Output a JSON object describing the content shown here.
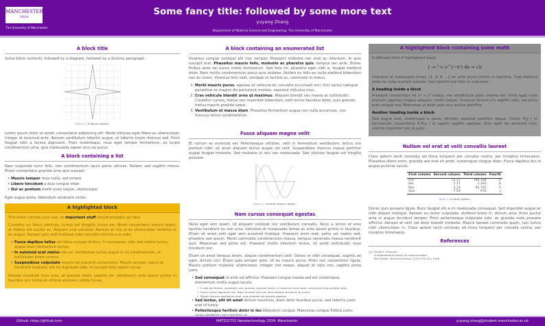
{
  "header": {
    "logo_text": "MANCHESTER",
    "logo_year": "1824",
    "logo_sub": "The University of Manchester",
    "title": "Some fancy title: followed by some more text",
    "author": "yuyang Zhang",
    "department": "Department of Material Science and Engineering, The University of Manchester"
  },
  "col1": {
    "b1_title": "A block title",
    "b1_intro": "Some block contents, followed by a diagram, followed by a dummy paragraph.",
    "fig1_label": "Figure 1.",
    "fig1_caption": "A figure caption.",
    "b1_para": "Lorem ipsum dolor sit amet, consectetur adipiscing elit. Morbi ultricies eget libero ac ullamcorper. Integer et euismod ante. Aenean vestibulum lobortis augue, ut lobortis turpis rhoncus sed. Proin feugiat nibh a lacinia dignissim. Proin scelerisque, risus eget tempor fermentum, ex turpis condimentum urna, quis malesuada sapien arcu eu purus.",
    "b2_title": "A block containing a list",
    "b2_intro": "Nam vulputate nunc felis, non condimentum lacus porta ultrices. Nullam sed sagittis metus. Etiam consectetur gravida urna quis suscipit.",
    "b2_items": [
      {
        "b": "Mauris tempor",
        "t": " risus nulla, sed ornare"
      },
      {
        "b": "Libero tincidunt",
        "t": " a duis congue vitae"
      },
      {
        "b": "Dui ac pretium",
        "t": " morbi justo neque, ullamcorper"
      }
    ],
    "b2_outro": "Eget augue porta, bibendum venenatis tortor.",
    "hb_title": "A highlighted block",
    "hb_p1a": "This block catches your eye, so ",
    "hb_p1b": "important stuff",
    "hb_p1c": " should probably go here.",
    "hb_p2": "Curabitur eu libero vehicula, cursus est fringilla, luctus est. Morbi consectetur mauris quam, at finibus elit auctor ac. Aliquam erat volutpat. Aenean at nisl ut ex ullamcorper eleifend et eu augue. Aenean quis velit tristique odio convallis ultrices a ac odio.",
    "hb_items": [
      {
        "b": "Fusce dapibus tellus",
        "t": " vel tellus semper finibus. In consequat, nibh sed mattis luctus, augue diam fermentum lectus."
      },
      {
        "b": "In euismod erat metus",
        "t": " non ex. Vestibulum luctus augue in mi condimentum, at sollicitudin lorem viverra."
      },
      {
        "b": "Suspendisse vulputate",
        "t": " mauris vel placerat consectetur. Mauris semper, purus ac hendrerit molestie, elit mi dignissim odio, in suscipit felis sapien vel ex."
      }
    ],
    "hb_p3": "Aenean tincidunt risus eros, at gravida lorem sagittis vel. Vestibulum ante ipsum primis in faucibus orci luctus et ultrices posuere cubilia Curae."
  },
  "col2": {
    "b1_title": "A block containing an enumerated list",
    "b1_p1a": "Vivamus congue volutpat elit non semper. Praesent molestie nec erat ac interdum. In quis suscipit erat. ",
    "b1_p1b": "Phasellus mauris felis, molestie ac pharetra quis",
    "b1_p1c": ", tempus nec ante. Donec finibus ante vel purus mollis fermentum. Sed felis mi, pharetra eget nibh a, feugiat eleifend dolor. Nam mollis condimentum purus quis sodales. Nullam eu felis eu nulla eleifend bibendum nec eu lorem. Vivamus felis velit, volutpat ut facilisis ac, commodo in metus.",
    "b1_items": [
      {
        "b": "Morbi mauris purus",
        "t": ", egestas at vehicula et, convallis accumsan orci. Orci varius natoque penatibus et magnis dis parturient montes, nascetur ridiculus mus."
      },
      {
        "b": "Cras vehicula blandit urna ut maximus",
        "t": ". Aliquam blandit nec massa ac sollicitudin. Curabitur cursus, metus nec imperdiet bibendum, velit lectus faucibus dolor, quis gravida metus mauris gravida turpis."
      },
      {
        "b": "Vestibulum et massa diam",
        "t": ". Phasellus fermentum augue non nulla accumsan, non rhoncus lectus condimentum."
      }
    ],
    "b2_title": "Fusce aliquam magna velit",
    "b2_p": "Et rutrum ex euismod vel. Pellentesque ultricies, velit in fermentum vestibulum, lectus nisi pretium nibh, sit amet aliquam lectus augue vel velit. Suspendisse rhoncus massa porttitor augue feugiat molestie. Sed molestie ut orci nec malesuada. Sed ultricies feugiat est fringilla posuere.",
    "fig2_label": "Figure 2.",
    "fig2_caption": "Another figure caption.",
    "b3_title": "Nam cursus consequat egestas",
    "b3_p1": "Nulla eget sem quam. Ut aliquam volutpat nisi vestibulum convallis. Nunc a lectus et eros facilisis hendrerit eu non urna. Interdum et malesuada fames ac ante ipsum primis in faucibus. Etiam sit amet velit eget sem euismod tristique. Praesent enim erat, porta vel mattis sed, pharetra sed ipsum. Morbi commodo condimentum massa, tempus venenatis massa hendrerit quis. Maecenas sed porta est. Praesent mollis interdum lectus, sit amet sollicitudin risus tincidunt non.",
    "b3_p2": "Etiam sit amet tempus lorem, aliquet condimentum velit. Donec et nibh consequat, sagittis ex eget, dictum orci. Etiam quis semper ante. Ut eu mauris purus. Proin nec consectetur ligula. Mauris pretium molestie ullamcorper. Integer nisi neque, aliquet et odio non, sagittis porta justo.",
    "b3_item1": {
      "b": "Sed consequat",
      "t": " id ante vel efficitur. Praesent congue massa sed est scelerisque, elementum mollis augue iaculis."
    },
    "b3_sub": [
      "In sed est finibus, vulputate nunc gravida, pulvinar lorem. In maximus nunc dolor, sed auctor eros porttitor quis.",
      "Fusce ornare dignissim nisi. Nam sit amet risus vel lacus tempor tincidunt eu a arcu.",
      "Donec rhoncus vestibulum erat, quis aliquam leo gravida egestas."
    ],
    "b3_items": [
      {
        "b": "Sed luctus, elit sit amet",
        "t": " dictum maximus, diam dolor faucibus purus, sed lobortis justo erat id turpis."
      },
      {
        "b": "Pellentesque facilisis dolor in leo",
        "t": " bibendum congue. Maecenas congue finibus justo, vitae eleifend urna facilisis at."
      }
    ]
  },
  "col3": {
    "gb_title": "A highlighted block containing some math",
    "gb_intro": "A different kind of highlighted block.",
    "gb_math": "∫₋∞^∞ e^(−x²) dx = √π",
    "gb_p1": "Interdum et malesuada fames {1, 4, 9, …} ac ante ipsum primis in faucibus. Cras eleifend dolor eu nulla suscipit suscipit. Sed lobortis non felis id vulputate.",
    "gb_h1": "A heading inside a block",
    "gb_p2": "Praesent consectetur mi x² + y² metus, nec vestibulum justo viverra nec. Proin eget nulla pretium, egestas magna aliquam, mollis neque. Vivamus dictum uᵀv sagittis odio, vel porta erat congue sed. Maecenas ut dolor quis arcu auctor porttitor.",
    "gb_h2": "Another heading inside a block",
    "gb_p3": "Sed augue erat, scelerisque a purus ultricies, placerat porttitor neque. Donec P(y | x) fermentum consectetur ∇ₓP(y | x) sapien sagittis egestas. Duis eget leo euismod nunc viverra imperdiet nec id justo.",
    "b2_title": "Nullam vel erat at velit convallis laoreet",
    "b2_p": "Class aptent taciti sociosqu ad litora torquent per conubia nostra, per inceptos himenaeos. Phasellus libero enim, gravida sed erat sit amet, scelerisque congue diam. Fusce dapibus dui ut augue pulvinar iaculis.",
    "table": {
      "headers": [
        "First column",
        "Second column",
        "Third column",
        "Fourth"
      ],
      "rows": [
        [
          "Foo",
          "13.37",
          "384,394",
          "α"
        ],
        [
          "Bar",
          "2.17",
          "1,392",
          "β"
        ],
        [
          "Baz",
          "3.14",
          "83,742",
          "δ"
        ],
        [
          "Qux",
          "7.59",
          "974",
          "γ"
        ]
      ]
    },
    "table_label": "Table 1.",
    "table_caption": "A table caption.",
    "b2_p2": "Donec quis posuere ligula. Nunc feugiat elit a mi malesuada consequat. Sed imperdiet augue ac nibh aliquet tristique. Aenean eu tortor vulputate, eleifend lorem in, dictum urna. Proin auctor ante in augue tincidunt tempor. Proin pellentesque vulputate odio, ac gravida nulla posuere efficitur. Aenean at velit vel dolor blandit molestie. Mauris laoreet commodo quam, non luctus nibh ullamcorper in. Class aptent taciti sociosqu ad litora torquent per conubia nostra, per inceptos himenaeos.",
    "refs_title": "References",
    "ref1": [
      "[1]  Claude E. Shannon.",
      "A mathematical theory of communication.",
      "Bell System Technical Journal, 27(3):379–423, 1948."
    ]
  },
  "footer": {
    "left": "Github: https://github.com",
    "center": "MATS32702 Nanotechnology 2024, Manchester",
    "right": "yuyang.zhang@student.manchester.ac.uk"
  },
  "colors": {
    "brand": "#6a0a9e",
    "highlight": "#f8c630",
    "grey_block": "#9a9a9a"
  }
}
